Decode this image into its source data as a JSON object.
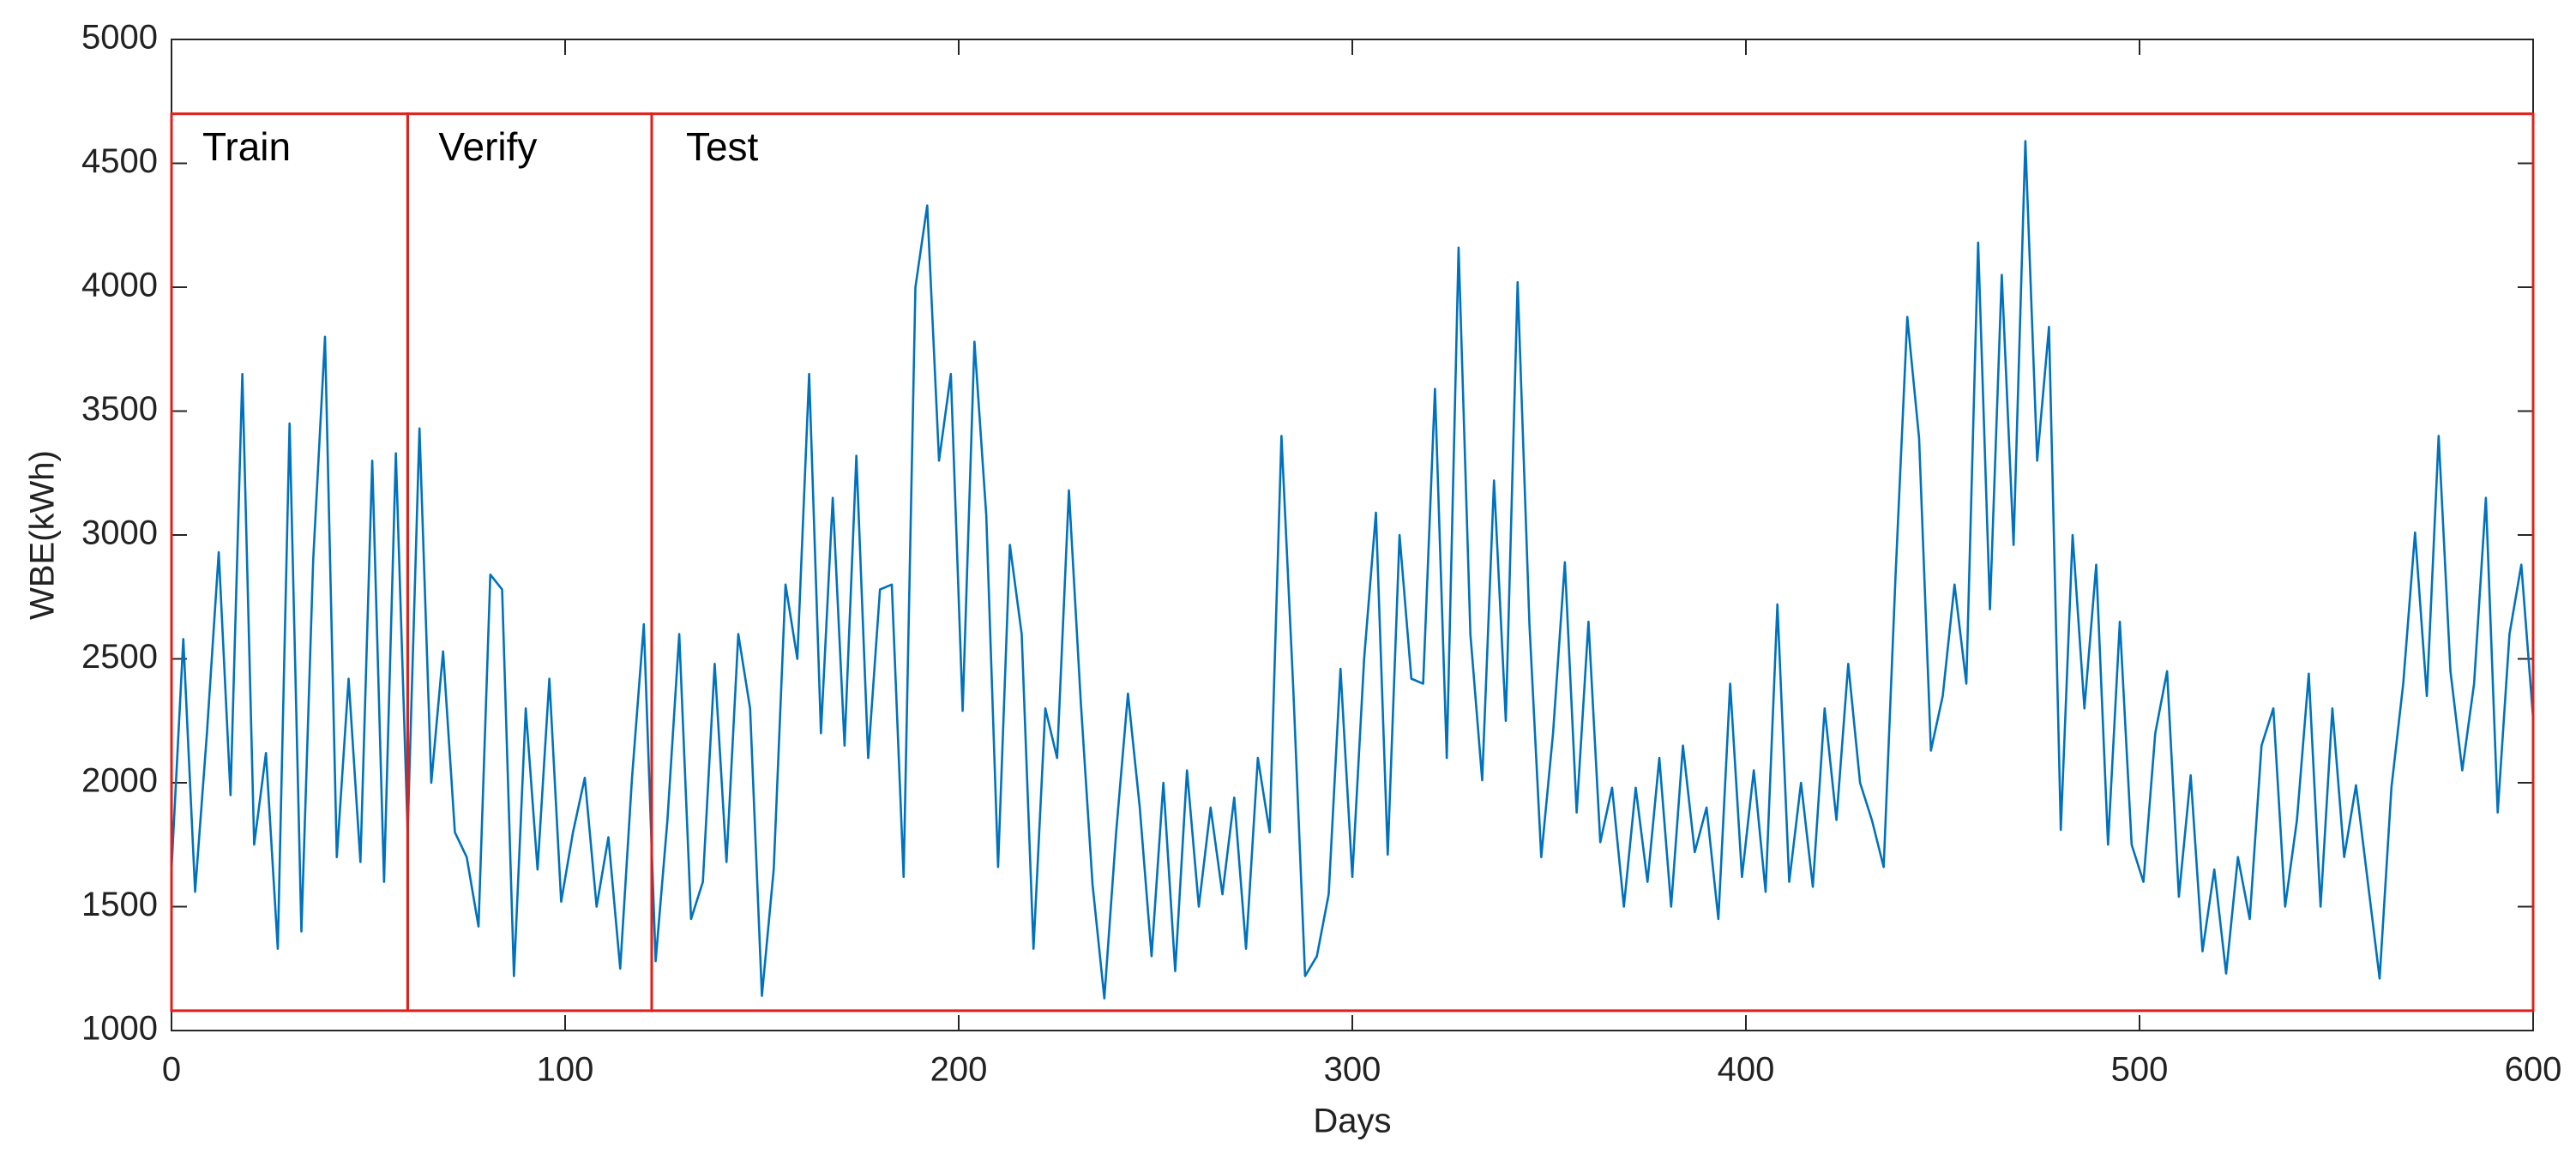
{
  "chart_data": {
    "type": "line",
    "x_label": "Days",
    "y_label": "WBE(kWh)",
    "color": "#0072bd",
    "xlim": [
      0,
      600
    ],
    "xticks": [
      0,
      100,
      200,
      300,
      400,
      500,
      600
    ],
    "ylim": [
      1000,
      5000
    ],
    "yticks": [
      1000,
      1500,
      2000,
      2500,
      3000,
      3500,
      4000,
      4500,
      5000
    ],
    "grid": false,
    "regions": [
      {
        "label": "Train",
        "x": [
          0,
          60
        ]
      },
      {
        "label": "Verify",
        "x": [
          60,
          122
        ]
      },
      {
        "label": "Test",
        "x": [
          122,
          600
        ]
      }
    ],
    "region_ylim": [
      1080,
      4700
    ],
    "region_color": "#e0201b",
    "x": [
      0,
      3,
      6,
      9,
      12,
      15,
      18,
      21,
      24,
      27,
      30,
      33,
      36,
      39,
      42,
      45,
      48,
      51,
      54,
      57,
      60,
      63,
      66,
      69,
      72,
      75,
      78,
      81,
      84,
      87,
      90,
      93,
      96,
      99,
      102,
      105,
      108,
      111,
      114,
      117,
      120,
      123,
      126,
      129,
      132,
      135,
      138,
      141,
      144,
      147,
      150,
      153,
      156,
      159,
      162,
      165,
      168,
      171,
      174,
      177,
      180,
      183,
      186,
      189,
      192,
      195,
      198,
      201,
      204,
      207,
      210,
      213,
      216,
      219,
      222,
      225,
      228,
      231,
      234,
      237,
      240,
      243,
      246,
      249,
      252,
      255,
      258,
      261,
      264,
      267,
      270,
      273,
      276,
      279,
      282,
      285,
      288,
      291,
      294,
      297,
      300,
      303,
      306,
      309,
      312,
      315,
      318,
      321,
      324,
      327,
      330,
      333,
      336,
      339,
      342,
      345,
      348,
      351,
      354,
      357,
      360,
      363,
      366,
      369,
      372,
      375,
      378,
      381,
      384,
      387,
      390,
      393,
      396,
      399,
      402,
      405,
      408,
      411,
      414,
      417,
      420,
      423,
      426,
      429,
      432,
      435,
      438,
      441,
      444,
      447,
      450,
      453,
      456,
      459,
      462,
      465,
      468,
      471,
      474,
      477,
      480,
      483,
      486,
      489,
      492,
      495,
      498,
      501,
      504,
      507,
      510,
      513,
      516,
      519,
      522,
      525,
      528,
      531,
      534,
      537,
      540,
      543,
      546,
      549,
      552,
      555,
      558,
      561,
      564,
      567,
      570,
      573,
      576,
      579,
      582,
      585,
      588,
      591,
      594,
      597,
      600
    ],
    "values": [
      1650,
      2580,
      1560,
      2200,
      2930,
      1950,
      3650,
      1750,
      2120,
      1330,
      3450,
      1400,
      2900,
      3800,
      1700,
      2420,
      1680,
      3300,
      1600,
      3330,
      1800,
      3430,
      2000,
      2530,
      1800,
      1700,
      1420,
      2840,
      2780,
      1220,
      2300,
      1650,
      2420,
      1520,
      1800,
      2020,
      1500,
      1780,
      1250,
      2020,
      2640,
      1280,
      1850,
      2600,
      1450,
      1600,
      2480,
      1680,
      2600,
      2300,
      1140,
      1650,
      2800,
      2500,
      3650,
      2200,
      3150,
      2150,
      3320,
      2100,
      2780,
      2800,
      1620,
      4000,
      4330,
      3300,
      3650,
      2290,
      3780,
      3080,
      1660,
      2960,
      2600,
      1330,
      2300,
      2100,
      3180,
      2330,
      1590,
      1130,
      1800,
      2360,
      1900,
      1300,
      2000,
      1240,
      2050,
      1500,
      1900,
      1550,
      1940,
      1330,
      2100,
      1800,
      3400,
      2380,
      1220,
      1300,
      1550,
      2460,
      1620,
      2500,
      3090,
      1710,
      3000,
      2420,
      2400,
      3590,
      2100,
      4160,
      2600,
      2010,
      3220,
      2250,
      4020,
      2640,
      1700,
      2200,
      2890,
      1880,
      2650,
      1760,
      1980,
      1500,
      1980,
      1600,
      2100,
      1500,
      2150,
      1720,
      1900,
      1450,
      2400,
      1620,
      2050,
      1560,
      2720,
      1600,
      2000,
      1580,
      2300,
      1850,
      2480,
      2000,
      1850,
      1660,
      2830,
      3880,
      3390,
      2130,
      2350,
      2800,
      2400,
      4180,
      2700,
      4050,
      2960,
      4590,
      3300,
      3840,
      1810,
      3000,
      2300,
      2880,
      1750,
      2650,
      1750,
      1600,
      2200,
      2450,
      1540,
      2030,
      1320,
      1650,
      1230,
      1700,
      1450,
      2150,
      2300,
      1500,
      1850,
      2440,
      1500,
      2300,
      1700,
      1990,
      1600,
      1210,
      1980,
      2400,
      3010,
      2350,
      3400,
      2450,
      2050,
      2400,
      3150,
      1880,
      2600,
      2880,
      2260
    ]
  }
}
